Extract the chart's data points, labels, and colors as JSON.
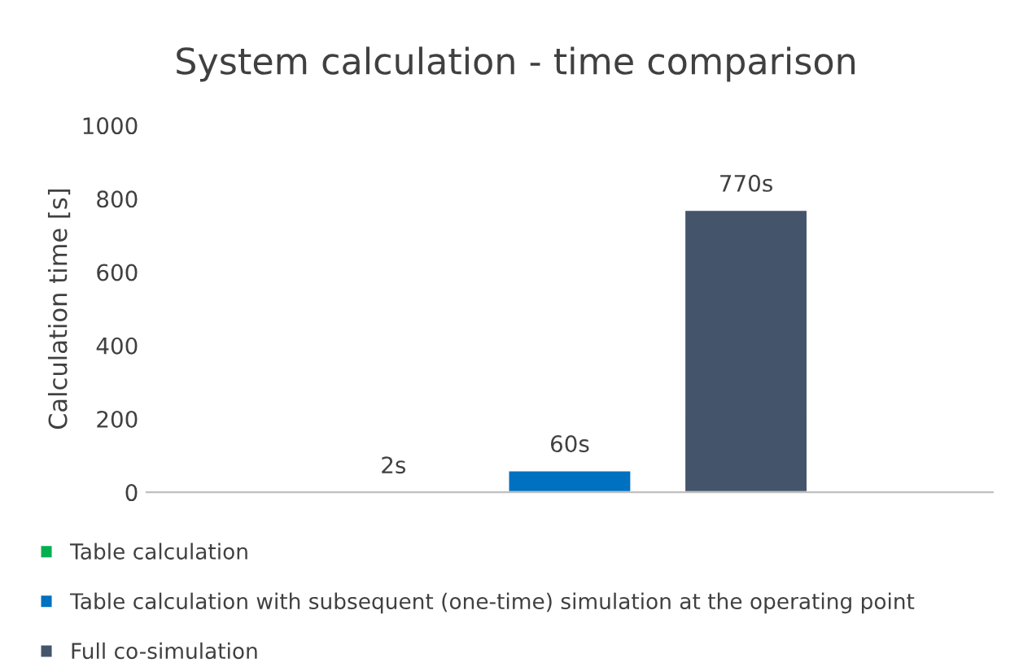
{
  "chart_data": {
    "type": "bar",
    "title": "System calculation - time comparison",
    "ylabel": "Calculation time [s]",
    "categories": [
      null
    ],
    "series": [
      {
        "name": "Table calculation",
        "color": "#00b050",
        "values": [
          2
        ],
        "value_labels": [
          "2s"
        ]
      },
      {
        "name": "Table calculation with subsequent (one-time) simulation at the operating point",
        "color": "#0070c0",
        "values": [
          60
        ],
        "value_labels": [
          "60s"
        ]
      },
      {
        "name": "Full co-simulation",
        "color": "#44546a",
        "values": [
          770
        ],
        "value_labels": [
          "770s"
        ]
      }
    ],
    "ylim": [
      0,
      1000
    ],
    "yticks": [
      0,
      200,
      400,
      600,
      800,
      1000
    ],
    "grid": false,
    "legend": "bottom"
  }
}
